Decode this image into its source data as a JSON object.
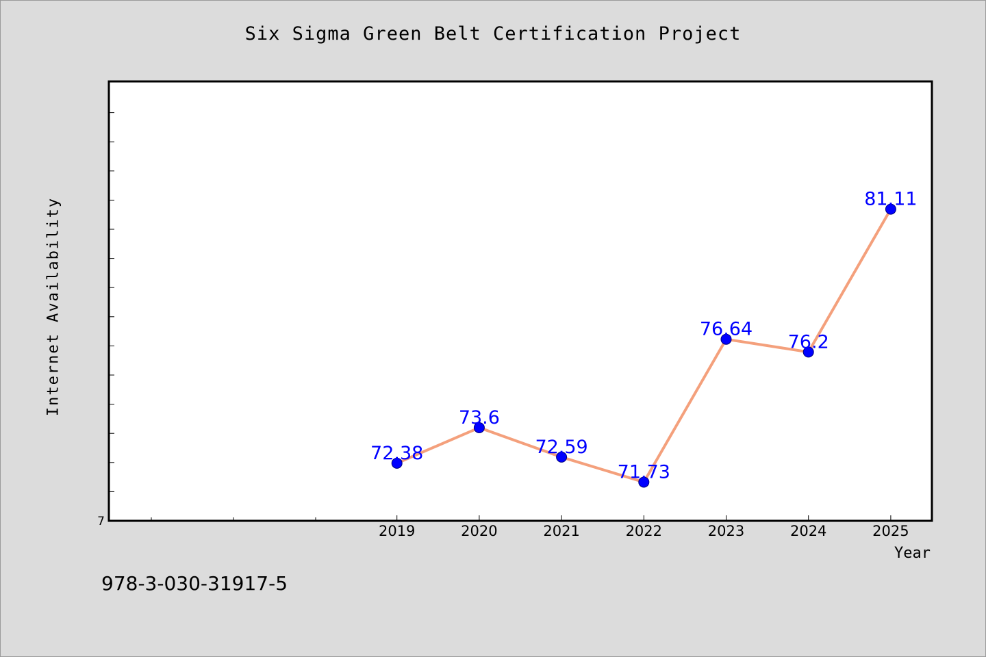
{
  "chart_data": {
    "type": "line",
    "title": "Six Sigma Green Belt Certification Project",
    "xlabel": "Year",
    "ylabel": "Internet Availability",
    "categories": [
      "2019",
      "2020",
      "2021",
      "2022",
      "2023",
      "2024",
      "2025"
    ],
    "series": [
      {
        "values": [
          72.38,
          73.6,
          72.59,
          71.73,
          76.64,
          76.2,
          81.11
        ]
      }
    ],
    "data_labels": [
      "72.38",
      "73.6",
      "72.59",
      "71.73",
      "76.64",
      "76.2",
      "81.11"
    ],
    "y_tick_labels": [
      "7"
    ],
    "grid": false,
    "colors": {
      "line": "#f4a07c",
      "marker": "#0000ff",
      "label": "#0000ff"
    }
  },
  "footer_text": "978-3-030-31917-5"
}
